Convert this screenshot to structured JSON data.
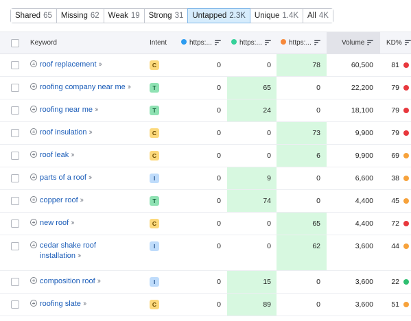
{
  "tabs": [
    {
      "label": "Shared",
      "count": "65",
      "active": false
    },
    {
      "label": "Missing",
      "count": "62",
      "active": false
    },
    {
      "label": "Weak",
      "count": "19",
      "active": false
    },
    {
      "label": "Strong",
      "count": "31",
      "active": false
    },
    {
      "label": "Untapped",
      "count": "2.3K",
      "active": true
    },
    {
      "label": "Unique",
      "count": "1.4K",
      "active": false
    },
    {
      "label": "All",
      "count": "4K",
      "active": false
    }
  ],
  "columns": {
    "keyword": "Keyword",
    "intent": "Intent",
    "domains": [
      {
        "label": "https:...",
        "color": "#2d9cf0"
      },
      {
        "label": "https:...",
        "color": "#36d19a"
      },
      {
        "label": "https:...",
        "color": "#f7893b"
      }
    ],
    "volume": "Volume",
    "kd": "KD%"
  },
  "kd_colors": {
    "red": "#e8383d",
    "orange": "#f7a23b",
    "green": "#2fbf71"
  },
  "rows": [
    {
      "keyword": "roof replacement",
      "intent": "C",
      "d1": "0",
      "d2": "0",
      "d3": "78",
      "highlight": 3,
      "volume": "60,500",
      "kd": "81",
      "kd_color": "red"
    },
    {
      "keyword": "roofing company near me",
      "intent": "T",
      "d1": "0",
      "d2": "65",
      "d3": "0",
      "highlight": 2,
      "volume": "22,200",
      "kd": "79",
      "kd_color": "red"
    },
    {
      "keyword": "roofing near me",
      "intent": "T",
      "d1": "0",
      "d2": "24",
      "d3": "0",
      "highlight": 2,
      "volume": "18,100",
      "kd": "79",
      "kd_color": "red"
    },
    {
      "keyword": "roof insulation",
      "intent": "C",
      "d1": "0",
      "d2": "0",
      "d3": "73",
      "highlight": 3,
      "volume": "9,900",
      "kd": "79",
      "kd_color": "red"
    },
    {
      "keyword": "roof leak",
      "intent": "C",
      "d1": "0",
      "d2": "0",
      "d3": "6",
      "highlight": 3,
      "volume": "9,900",
      "kd": "69",
      "kd_color": "orange"
    },
    {
      "keyword": "parts of a roof",
      "intent": "I",
      "d1": "0",
      "d2": "9",
      "d3": "0",
      "highlight": 2,
      "volume": "6,600",
      "kd": "38",
      "kd_color": "orange"
    },
    {
      "keyword": "copper roof",
      "intent": "T",
      "d1": "0",
      "d2": "74",
      "d3": "0",
      "highlight": 2,
      "volume": "4,400",
      "kd": "45",
      "kd_color": "orange"
    },
    {
      "keyword": "new roof",
      "intent": "C",
      "d1": "0",
      "d2": "0",
      "d3": "65",
      "highlight": 3,
      "volume": "4,400",
      "kd": "72",
      "kd_color": "red"
    },
    {
      "keyword_line1": "cedar shake roof",
      "keyword_line2": "installation",
      "intent": "I",
      "d1": "0",
      "d2": "0",
      "d3": "62",
      "highlight": 3,
      "volume": "3,600",
      "kd": "44",
      "kd_color": "orange"
    },
    {
      "keyword": "composition roof",
      "intent": "I",
      "d1": "0",
      "d2": "15",
      "d3": "0",
      "highlight": 2,
      "volume": "3,600",
      "kd": "22",
      "kd_color": "green"
    },
    {
      "keyword": "roofing slate",
      "intent": "C",
      "d1": "0",
      "d2": "89",
      "d3": "0",
      "highlight": 2,
      "volume": "3,600",
      "kd": "51",
      "kd_color": "orange"
    }
  ]
}
